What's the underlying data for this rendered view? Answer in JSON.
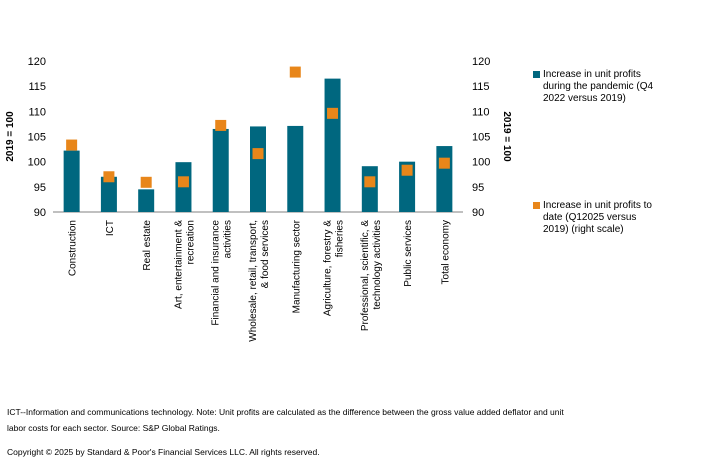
{
  "chart_data": {
    "type": "bar",
    "categories": [
      "Construction",
      "ICT",
      "Real estate",
      "Art, entertainment & recreation",
      "Financial and insurance activities",
      "Wholesale, retail, transport, & food services",
      "Manufacturing sector",
      "Agriculture, forestry & fisheries",
      "Professional, scientific, & technology activities",
      "Public services",
      "Total economy"
    ],
    "series": [
      {
        "name": "Increase in unit profits during the pandemic (Q4 2022 versus 2019)",
        "kind": "bar",
        "axis": "left",
        "color": "#00677f",
        "values": [
          102.2,
          97.0,
          94.5,
          99.9,
          106.5,
          107.0,
          107.1,
          116.5,
          99.1,
          100.0,
          103.1
        ]
      },
      {
        "name": "Increase in unit profits to date (Q12025 versus 2019) (right scale)",
        "kind": "marker",
        "axis": "right",
        "color": "#e8861a",
        "values": [
          103.3,
          97.0,
          95.9,
          96.0,
          107.2,
          101.6,
          117.8,
          109.6,
          96.0,
          98.3,
          99.7
        ]
      }
    ],
    "ylabel": "2019 = 100",
    "y2label": "2019 = 100",
    "ylim": [
      90,
      120
    ],
    "y2lim": [
      90,
      120
    ],
    "yticks": [
      "90",
      "95",
      "100",
      "105",
      "110",
      "115",
      "120"
    ],
    "legend_position": "right",
    "grid": false
  },
  "notes": {
    "footnote": "ICT--Information and communications technology. Note: Unit profits are calculated as the difference between the gross value added deflator and unit labor costs for each sector. Source: S&P Global Ratings.",
    "copyright": "Copyright © 2025 by Standard & Poor's Financial Services LLC. All rights reserved."
  }
}
